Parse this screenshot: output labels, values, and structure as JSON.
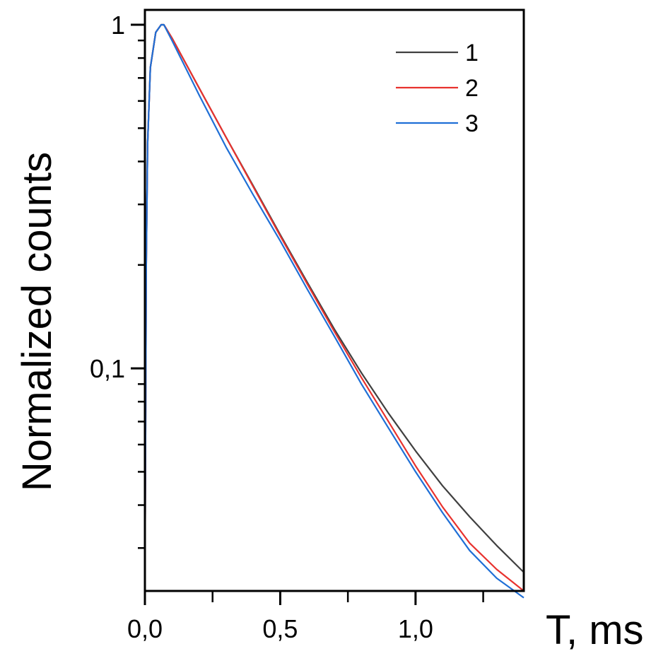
{
  "chart_data": {
    "type": "line",
    "xlabel": "T, ms",
    "ylabel": "Normalized counts",
    "xlim": [
      0.0,
      1.4
    ],
    "ylim": [
      0.0225,
      1.0
    ],
    "yscale": "log",
    "x_ticks": [
      {
        "value": 0.0,
        "label": "0,0"
      },
      {
        "value": 0.5,
        "label": "0,5"
      },
      {
        "value": 1.0,
        "label": "1,0"
      }
    ],
    "y_ticks": [
      {
        "value": 0.1,
        "label": "0,1"
      },
      {
        "value": 1.0,
        "label": "1"
      }
    ],
    "legend_position": "top-right",
    "grid": false,
    "series": [
      {
        "name": "1",
        "color": "#404040",
        "x": [
          0.0,
          0.005,
          0.01,
          0.02,
          0.04,
          0.06,
          0.07,
          0.1,
          0.2,
          0.3,
          0.4,
          0.5,
          0.6,
          0.7,
          0.8,
          0.9,
          1.0,
          1.1,
          1.2,
          1.3,
          1.4
        ],
        "y": [
          0.0225,
          0.2,
          0.45,
          0.75,
          0.95,
          1.0,
          1.0,
          0.915,
          0.655,
          0.47,
          0.34,
          0.245,
          0.178,
          0.13,
          0.097,
          0.074,
          0.0575,
          0.0455,
          0.037,
          0.0305,
          0.0255
        ]
      },
      {
        "name": "2",
        "color": "#e8322e",
        "x": [
          0.0,
          0.005,
          0.01,
          0.02,
          0.04,
          0.06,
          0.07,
          0.1,
          0.2,
          0.3,
          0.4,
          0.5,
          0.6,
          0.7,
          0.8,
          0.9,
          1.0,
          1.1,
          1.2,
          1.3,
          1.4
        ],
        "y": [
          0.0225,
          0.2,
          0.45,
          0.75,
          0.95,
          1.0,
          1.0,
          0.915,
          0.655,
          0.47,
          0.338,
          0.243,
          0.176,
          0.128,
          0.094,
          0.07,
          0.052,
          0.0395,
          0.031,
          0.026,
          0.0225
        ]
      },
      {
        "name": "3",
        "color": "#1f6fd6",
        "x": [
          0.0,
          0.005,
          0.01,
          0.02,
          0.04,
          0.06,
          0.07,
          0.1,
          0.2,
          0.3,
          0.4,
          0.5,
          0.6,
          0.7,
          0.8,
          0.9,
          1.0,
          1.1,
          1.2,
          1.3,
          1.4
        ],
        "y": [
          0.0225,
          0.2,
          0.45,
          0.75,
          0.95,
          1.0,
          1.0,
          0.9,
          0.625,
          0.44,
          0.32,
          0.235,
          0.17,
          0.124,
          0.09,
          0.067,
          0.05,
          0.038,
          0.0295,
          0.0245,
          0.0215
        ]
      }
    ]
  }
}
